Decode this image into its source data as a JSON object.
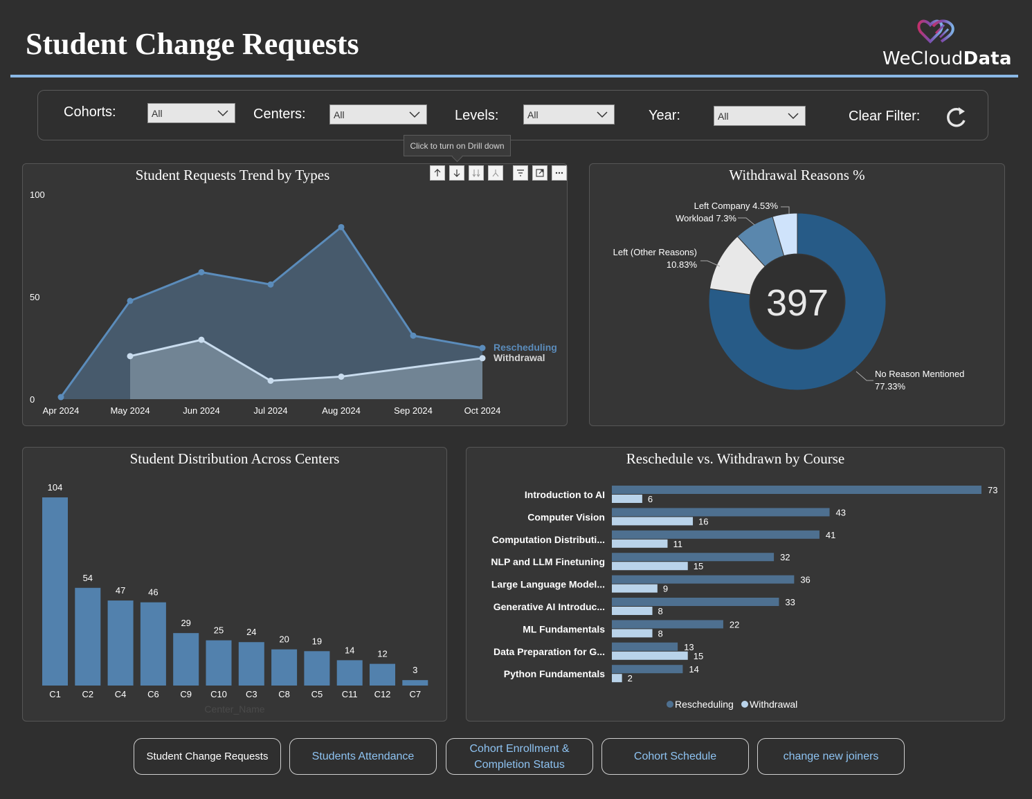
{
  "header": {
    "title": "Student Change Requests",
    "logo_text_a": "WeCloud",
    "logo_text_b": "Data"
  },
  "filters": {
    "cohorts": {
      "label": "Cohorts:",
      "value": "All"
    },
    "centers": {
      "label": "Centers:",
      "value": "All"
    },
    "levels": {
      "label": "Levels:",
      "value": "All"
    },
    "year": {
      "label": "Year:",
      "value": "All"
    },
    "clear": {
      "label": "Clear Filter:"
    }
  },
  "tooltip": "Click to turn on Drill down",
  "trend": {
    "title": "Student Requests Trend by Types",
    "chart_data": {
      "type": "area",
      "categories": [
        "Apr 2024",
        "May 2024",
        "Jun 2024",
        "Jul 2024",
        "Aug 2024",
        "Sep 2024",
        "Oct 2024"
      ],
      "yticks": [
        "0",
        "50",
        "100"
      ],
      "ylim": [
        0,
        100
      ],
      "series": [
        {
          "name": "Rescheduling",
          "values": [
            1,
            48,
            62,
            56,
            84,
            31,
            25
          ]
        },
        {
          "name": "Withdrawal",
          "values": [
            null,
            21,
            29,
            9,
            11,
            null,
            20
          ]
        }
      ]
    }
  },
  "withdrawal": {
    "title": "Withdrawal Reasons %",
    "center_value": "397",
    "chart_data": {
      "type": "pie",
      "slices": [
        {
          "label": "No Reason Mentioned",
          "pct_text": "77.33%",
          "value": 77.33,
          "color": "#275b87"
        },
        {
          "label": "Left (Other Reasons)",
          "pct_text": "10.83%",
          "value": 10.83,
          "color": "#e8e8e8"
        },
        {
          "label": "Workload",
          "pct_text": "7.3%",
          "value": 7.3,
          "color": "#5a87ad"
        },
        {
          "label": "Left Company",
          "pct_text": "4.53%",
          "value": 4.53,
          "color": "#cfe3fb"
        }
      ]
    }
  },
  "centers": {
    "title": "Student Distribution Across Centers",
    "xlabel": "Center_Name",
    "chart_data": {
      "type": "bar",
      "categories": [
        "C1",
        "C2",
        "C4",
        "C6",
        "C9",
        "C10",
        "C3",
        "C8",
        "C5",
        "C11",
        "C12",
        "C7"
      ],
      "values": [
        104,
        54,
        47,
        46,
        29,
        25,
        24,
        20,
        19,
        14,
        12,
        3
      ]
    }
  },
  "courses": {
    "title": "Reschedule vs. Withdrawn by Course",
    "chart_data": {
      "type": "bar",
      "orientation": "horizontal",
      "categories": [
        "Introduction to AI",
        "Computer Vision",
        "Computation Distributi...",
        "NLP and LLM Finetuning",
        "Large Language Model...",
        "Generative AI Introduc...",
        "ML Fundamentals",
        "Data Preparation for G...",
        "Python Fundamentals"
      ],
      "series": [
        {
          "name": "Rescheduling",
          "values": [
            73,
            43,
            41,
            32,
            36,
            33,
            22,
            13,
            14
          ],
          "color": "#4e7090"
        },
        {
          "name": "Withdrawal",
          "values": [
            6,
            16,
            11,
            15,
            9,
            8,
            8,
            15,
            2
          ],
          "color": "#b9d3ea"
        }
      ]
    },
    "legend": {
      "a": "Rescheduling",
      "b": "Withdrawal"
    }
  },
  "nav": {
    "b1": "Student Change Requests",
    "b2": "Students Attendance",
    "b3_line1": "Cohort Enrollment &",
    "b3_line2": "Completion Status",
    "b4": "Cohort Schedule",
    "b5": "change new joiners"
  }
}
